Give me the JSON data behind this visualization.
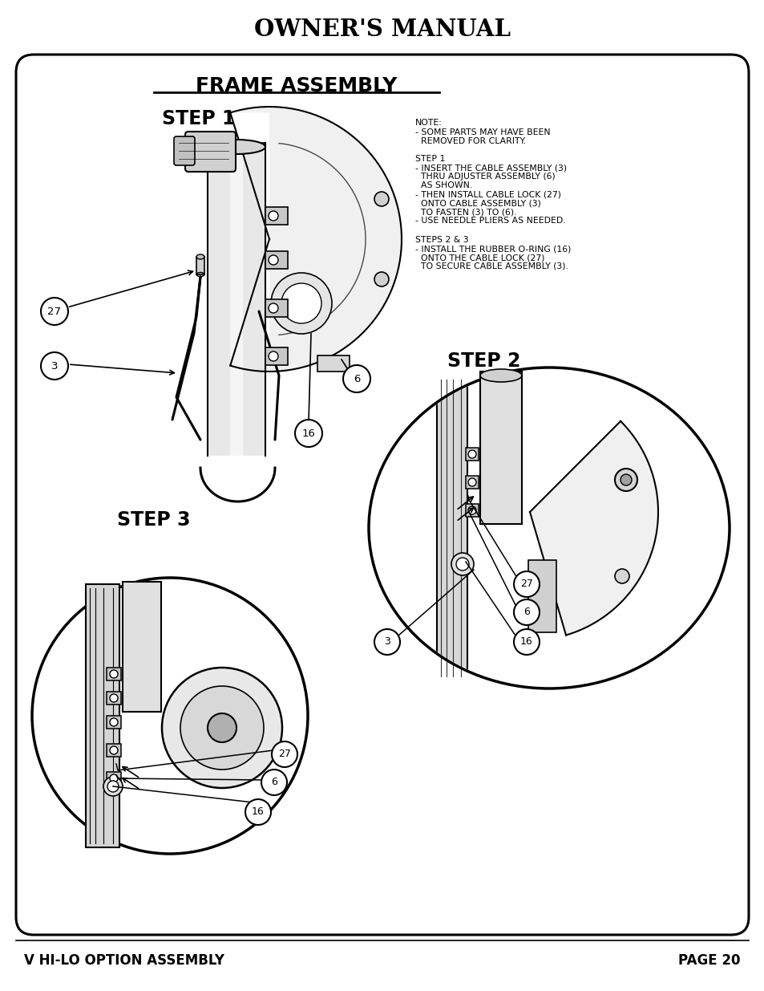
{
  "title": "OWNER'S MANUAL",
  "section_title": "FRAME ASSEMBLY",
  "step1_label": "STEP 1",
  "step2_label": "STEP 2",
  "step3_label": "STEP 3",
  "footer_left": "V HI-LO OPTION ASSEMBLY",
  "footer_right": "PAGE 20",
  "note_line1": "NOTE:",
  "note_line2": "- SOME PARTS MAY HAVE BEEN",
  "note_line3": "  REMOVED FOR CLARITY.",
  "s1_line1": "STEP 1",
  "s1_line2": "- INSERT THE CABLE ASSEMBLY (3)",
  "s1_line3": "  THRU ADJUSTER ASSEMBLY (6)",
  "s1_line4": "  AS SHOWN.",
  "s1_line5": "- THEN INSTALL CABLE LOCK (27)",
  "s1_line6": "  ONTO CABLE ASSEMBLY (3)",
  "s1_line7": "  TO FASTEN (3) TO (6).",
  "s1_line8": "- USE NEEDLE PLIERS AS NEEDED.",
  "s23_line1": "STEPS 2 & 3",
  "s23_line2": "- INSTALL THE RUBBER O-RING (16)",
  "s23_line3": "  ONTO THE CABLE LOCK (27)",
  "s23_line4": "  TO SECURE CABLE ASSEMBLY (3).",
  "bg_color": "#ffffff",
  "border_color": "#000000",
  "text_color": "#000000",
  "fig_width": 9.54,
  "fig_height": 12.35,
  "dpi": 100
}
